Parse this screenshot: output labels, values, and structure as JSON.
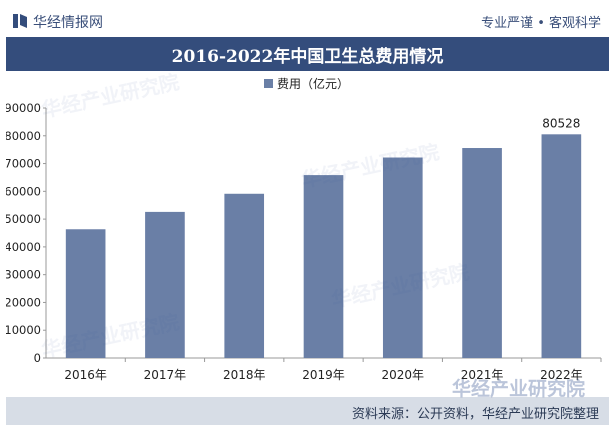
{
  "header": {
    "brand": "华经情报网",
    "tagline": "专业严谨 • 客观科学"
  },
  "footer": {
    "source": "资料来源：公开资料，华经产业研究院整理",
    "watermark": "华经产业研究院"
  },
  "colors": {
    "bar": "#6a7fa6",
    "title_bar": "#344d7c",
    "footer_bg": "#d7dde6"
  },
  "chart_data": {
    "type": "bar",
    "title": "2016-2022年中国卫生总费用情况",
    "categories": [
      "2016年",
      "2017年",
      "2018年",
      "2019年",
      "2020年",
      "2021年",
      "2022年"
    ],
    "series": [
      {
        "name": "费用（亿元）",
        "values": [
          46345,
          52598,
          59122,
          65841,
          72175,
          75593,
          80528
        ]
      }
    ],
    "data_labels": {
      "2022年": "80528"
    },
    "xlabel": "",
    "ylabel": "",
    "ylim": [
      0,
      90000
    ],
    "yticks": [
      0,
      10000,
      20000,
      30000,
      40000,
      50000,
      60000,
      70000,
      80000,
      90000
    ],
    "legend": "top-center",
    "grid": false
  }
}
